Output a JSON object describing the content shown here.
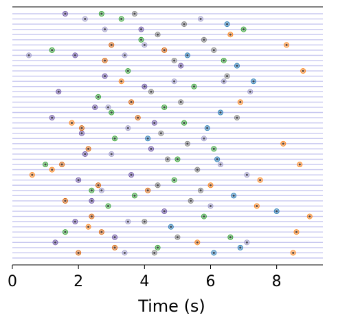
{
  "chart_data": {
    "type": "scatter",
    "title": "",
    "xlabel": "Time (s)",
    "ylabel": "",
    "xlim": [
      0,
      9.4
    ],
    "xticks": [
      0,
      2,
      4,
      6,
      8
    ],
    "xtick_labels": [
      "0",
      "2",
      "4",
      "6",
      "8"
    ],
    "row_count": 48,
    "grid": "horizontal row lines",
    "legend": "none",
    "colors": {
      "row_line": "#c8c8f0",
      "green": "#2ca02c",
      "orange": "#ff7f0e",
      "blue": "#1f77b4",
      "purple": "#6a51a3",
      "gray": "#7f7f7f",
      "red_orange": "#d95f02",
      "lavender": "#9e9ac8",
      "axis": "#000000"
    },
    "series": [
      {
        "color_key": "green",
        "points": [
          [
            2.7,
            1
          ],
          [
            3.3,
            2
          ],
          [
            3.9,
            6
          ],
          [
            1.2,
            8
          ],
          [
            3.5,
            12
          ],
          [
            5.5,
            15
          ],
          [
            2.6,
            17
          ],
          [
            4.6,
            19
          ],
          [
            5.2,
            22
          ],
          [
            3.1,
            25
          ],
          [
            6.1,
            27
          ],
          [
            1.0,
            30
          ],
          [
            4.9,
            33
          ],
          [
            3.7,
            36
          ],
          [
            2.9,
            38
          ],
          [
            5.8,
            40
          ],
          [
            1.6,
            43
          ],
          [
            4.4,
            46
          ],
          [
            7.0,
            4
          ],
          [
            6.4,
            10
          ],
          [
            3.0,
            20
          ],
          [
            5.0,
            29
          ],
          [
            2.4,
            35
          ],
          [
            6.6,
            44
          ]
        ]
      },
      {
        "color_key": "orange",
        "points": [
          [
            6.6,
            5
          ],
          [
            8.3,
            7
          ],
          [
            8.8,
            12
          ],
          [
            6.9,
            18
          ],
          [
            8.2,
            26
          ],
          [
            8.7,
            30
          ],
          [
            7.5,
            33
          ],
          [
            0.6,
            32
          ],
          [
            1.2,
            31
          ],
          [
            7.4,
            38
          ],
          [
            9.0,
            40
          ],
          [
            8.6,
            43
          ],
          [
            8.5,
            47
          ],
          [
            1.8,
            22
          ],
          [
            6.0,
            34
          ],
          [
            3.3,
            14
          ],
          [
            5.6,
            45
          ],
          [
            2.3,
            42
          ]
        ]
      },
      {
        "color_key": "blue",
        "points": [
          [
            6.5,
            3
          ],
          [
            6.8,
            11
          ],
          [
            7.3,
            14
          ],
          [
            6.3,
            20
          ],
          [
            5.9,
            23
          ],
          [
            6.2,
            29
          ],
          [
            6.7,
            36
          ],
          [
            8.0,
            39
          ],
          [
            4.8,
            42
          ],
          [
            6.1,
            47
          ],
          [
            5.3,
            9
          ],
          [
            4.1,
            25
          ],
          [
            6.9,
            46
          ]
        ]
      },
      {
        "color_key": "purple",
        "points": [
          [
            1.6,
            1
          ],
          [
            1.9,
            9
          ],
          [
            2.8,
            13
          ],
          [
            1.4,
            16
          ],
          [
            2.5,
            19
          ],
          [
            1.2,
            21
          ],
          [
            2.1,
            24
          ],
          [
            2.2,
            28
          ],
          [
            2.0,
            33
          ],
          [
            2.4,
            37
          ],
          [
            1.9,
            41
          ],
          [
            1.3,
            45
          ],
          [
            3.9,
            4
          ],
          [
            4.0,
            15
          ],
          [
            4.2,
            27
          ],
          [
            3.6,
            32
          ],
          [
            4.6,
            39
          ],
          [
            3.1,
            44
          ],
          [
            5.1,
            11
          ],
          [
            4.3,
            22
          ]
        ]
      },
      {
        "color_key": "gray",
        "points": [
          [
            3.7,
            1
          ],
          [
            5.2,
            3
          ],
          [
            4.4,
            5
          ],
          [
            5.8,
            6
          ],
          [
            4.9,
            10
          ],
          [
            6.5,
            13
          ],
          [
            4.2,
            16
          ],
          [
            5.1,
            18
          ],
          [
            6.8,
            21
          ],
          [
            4.5,
            24
          ],
          [
            5.3,
            26
          ],
          [
            4.7,
            29
          ],
          [
            5.6,
            31
          ],
          [
            4.4,
            34
          ],
          [
            5.4,
            37
          ],
          [
            4.0,
            41
          ],
          [
            5.0,
            44
          ],
          [
            4.3,
            47
          ],
          [
            6.1,
            8
          ],
          [
            5.7,
            35
          ]
        ]
      },
      {
        "color_key": "red_orange",
        "points": [
          [
            2.8,
            10
          ],
          [
            4.6,
            8
          ],
          [
            3.6,
            18
          ],
          [
            2.1,
            23
          ],
          [
            2.3,
            27
          ],
          [
            1.5,
            30
          ],
          [
            2.6,
            34
          ],
          [
            4.1,
            35
          ],
          [
            1.6,
            37
          ],
          [
            2.4,
            40
          ],
          [
            2.7,
            43
          ],
          [
            2.0,
            47
          ],
          [
            3.1,
            46
          ],
          [
            3.8,
            21
          ],
          [
            3.0,
            7
          ]
        ]
      },
      {
        "color_key": "lavender",
        "points": [
          [
            2.2,
            2
          ],
          [
            2.8,
            4
          ],
          [
            4.0,
            7
          ],
          [
            3.4,
            9
          ],
          [
            6.4,
            14
          ],
          [
            7.2,
            16
          ],
          [
            2.9,
            19
          ],
          [
            3.5,
            23
          ],
          [
            5.8,
            25
          ],
          [
            3.0,
            28
          ],
          [
            7.1,
            32
          ],
          [
            2.7,
            35
          ],
          [
            6.0,
            38
          ],
          [
            3.5,
            41
          ],
          [
            7.1,
            45
          ],
          [
            5.7,
            2
          ],
          [
            0.5,
            9
          ],
          [
            4.9,
            14
          ],
          [
            6.3,
            30
          ],
          [
            3.4,
            47
          ]
        ]
      }
    ]
  }
}
